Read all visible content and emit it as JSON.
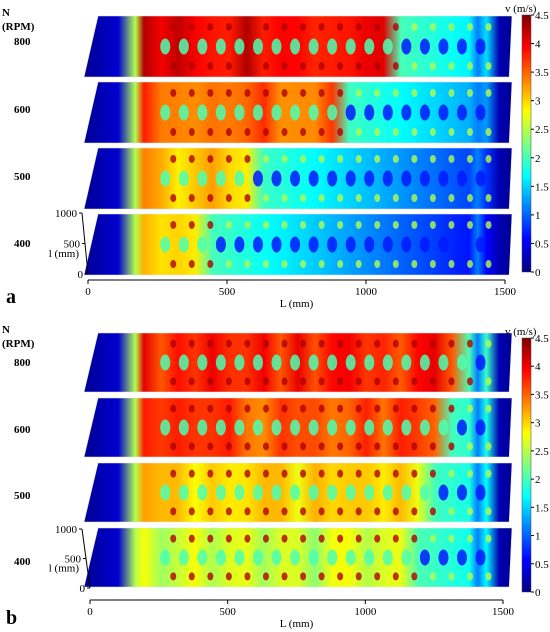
{
  "colors": {
    "scale": [
      "#00007f",
      "#0000ff",
      "#007fff",
      "#00ffff",
      "#7fff7f",
      "#ffff00",
      "#ff7f00",
      "#ff0000",
      "#7f0000"
    ]
  },
  "colorbar": {
    "label": "v (m/s)",
    "min": 0,
    "max": 4.5,
    "ticks": [
      "0",
      "0.5",
      "1",
      "1.5",
      "2",
      "2.5",
      "3",
      "3.5",
      "4",
      "4.5"
    ]
  },
  "row_header": {
    "line1": "N",
    "line2": "(RPM)"
  },
  "x_axis": {
    "label": "L (mm)",
    "ticks": [
      "0",
      "500",
      "1000",
      "1500"
    ]
  },
  "y_axis": {
    "label": "l (mm)",
    "ticks": [
      "1000",
      "500",
      "0"
    ]
  },
  "panels": [
    {
      "letter": "a",
      "rows": [
        {
          "rpm": "800",
          "hot_extent": 0.72,
          "intensity": 0.95
        },
        {
          "rpm": "600",
          "hot_extent": 0.55,
          "intensity": 0.85
        },
        {
          "rpm": "500",
          "hot_extent": 0.3,
          "intensity": 0.75
        },
        {
          "rpm": "400",
          "hot_extent": 0.18,
          "intensity": 0.7
        }
      ]
    },
    {
      "letter": "b",
      "rows": [
        {
          "rpm": "800",
          "hot_extent": 0.92,
          "intensity": 0.9
        },
        {
          "rpm": "600",
          "hot_extent": 0.85,
          "intensity": 0.85
        },
        {
          "rpm": "500",
          "hot_extent": 0.8,
          "intensity": 0.72
        },
        {
          "rpm": "400",
          "hot_extent": 0.78,
          "intensity": 0.62
        }
      ]
    }
  ]
}
